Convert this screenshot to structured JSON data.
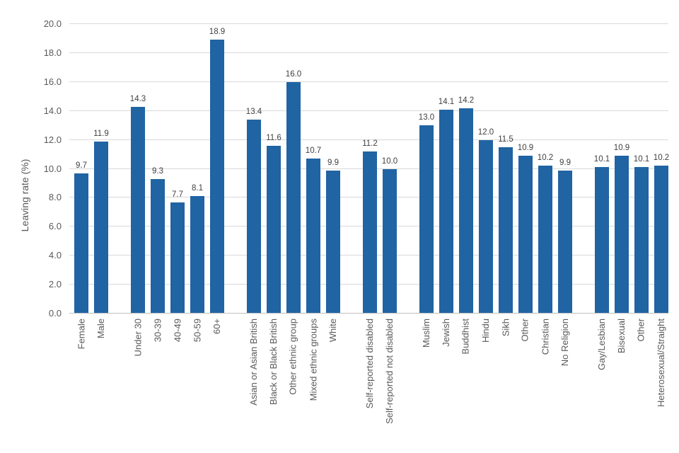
{
  "chart_data": {
    "type": "bar",
    "ylabel": "Leaving rate (%)",
    "ylim": [
      0,
      20
    ],
    "ytick_step": 2,
    "grid": true,
    "legend": false,
    "value_labels": true,
    "value_label_decimals": 1,
    "ytick_decimals": 1,
    "groups": [
      {
        "name": "gender",
        "categories": [
          "Female",
          "Male"
        ],
        "values": [
          9.7,
          11.9
        ]
      },
      {
        "name": "age",
        "categories": [
          "Under 30",
          "30-39",
          "40-49",
          "50-59",
          "60+"
        ],
        "values": [
          14.3,
          9.3,
          7.7,
          8.1,
          18.9
        ]
      },
      {
        "name": "ethnicity",
        "categories": [
          "Asian or Asian British",
          "Black or Black British",
          "Other ethnic group",
          "Mixed ethnic groups",
          "White"
        ],
        "values": [
          13.4,
          11.6,
          16.0,
          10.7,
          9.9
        ]
      },
      {
        "name": "disability",
        "categories": [
          "Self-reported disabled",
          "Self-reported not disabled"
        ],
        "values": [
          11.2,
          10.0
        ]
      },
      {
        "name": "religion",
        "categories": [
          "Muslim",
          "Jewish",
          "Buddhist",
          "Hindu",
          "Sikh",
          "Other",
          "Christian",
          "No Religion"
        ],
        "values": [
          13.0,
          14.1,
          14.2,
          12.0,
          11.5,
          10.9,
          10.2,
          9.9
        ]
      },
      {
        "name": "sexual-orientation",
        "categories": [
          "Gay/Lesbian",
          "Bisexual",
          "Other",
          "Heterosexual/Straight"
        ],
        "values": [
          10.1,
          10.9,
          10.1,
          10.2
        ]
      }
    ]
  },
  "colors": {
    "bar": "#2064A3",
    "gridline": "#D9D9D9",
    "axis_line": "#BFBFBF",
    "tick_label": "#595959",
    "data_label": "#404040",
    "background": "#FFFFFF"
  }
}
